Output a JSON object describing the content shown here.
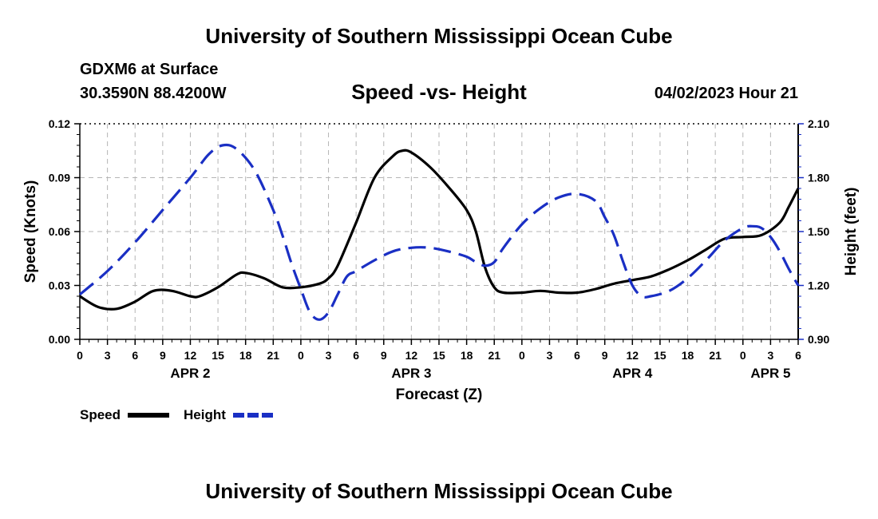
{
  "header": {
    "title": "University of Southern Mississippi Ocean Cube",
    "station": "GDXM6 at Surface",
    "coordinates": "30.3590N  88.4200W",
    "subtitle": "Speed -vs- Height",
    "datetime": "04/02/2023 Hour 21"
  },
  "footer": {
    "title": "University of Southern Mississippi Ocean Cube"
  },
  "chart_data": {
    "type": "line",
    "xlabel": "Forecast (Z)",
    "ylabel_left": "Speed (Knots)",
    "ylabel_right": "Height (feet)",
    "x_hours": [
      0,
      3,
      6,
      9,
      12,
      15,
      18,
      21,
      24,
      27,
      30,
      33,
      36,
      39,
      42,
      45,
      48,
      51,
      54,
      57,
      60,
      63,
      66,
      69,
      72,
      75,
      78
    ],
    "x_tick_labels": [
      "0",
      "3",
      "6",
      "9",
      "12",
      "15",
      "18",
      "21",
      "0",
      "3",
      "6",
      "9",
      "12",
      "15",
      "18",
      "21",
      "0",
      "3",
      "6",
      "9",
      "12",
      "15",
      "18",
      "21",
      "0",
      "3",
      "6"
    ],
    "day_labels": [
      {
        "label": "APR 2",
        "hour": 12
      },
      {
        "label": "APR 3",
        "hour": 36
      },
      {
        "label": "APR 4",
        "hour": 60
      },
      {
        "label": "APR 5",
        "hour": 75
      }
    ],
    "left_axis": {
      "min": 0.0,
      "max": 0.12,
      "ticks": [
        "0.00",
        "0.03",
        "0.06",
        "0.09",
        "0.12"
      ]
    },
    "right_axis": {
      "min": 0.9,
      "max": 2.1,
      "ticks": [
        "0.90",
        "1.20",
        "1.50",
        "1.80",
        "2.10"
      ]
    },
    "series": [
      {
        "name": "Speed",
        "axis": "left",
        "color": "#000000",
        "dash": "solid",
        "points": [
          [
            0,
            0.024
          ],
          [
            2,
            0.018
          ],
          [
            4,
            0.017
          ],
          [
            6,
            0.021
          ],
          [
            8,
            0.027
          ],
          [
            10,
            0.027
          ],
          [
            12,
            0.024
          ],
          [
            13,
            0.024
          ],
          [
            15,
            0.029
          ],
          [
            17,
            0.036
          ],
          [
            18,
            0.037
          ],
          [
            20,
            0.034
          ],
          [
            22,
            0.029
          ],
          [
            24,
            0.029
          ],
          [
            26,
            0.031
          ],
          [
            27,
            0.034
          ],
          [
            28,
            0.041
          ],
          [
            30,
            0.065
          ],
          [
            32,
            0.09
          ],
          [
            34,
            0.102
          ],
          [
            35,
            0.105
          ],
          [
            36,
            0.104
          ],
          [
            38,
            0.096
          ],
          [
            40,
            0.085
          ],
          [
            42,
            0.072
          ],
          [
            43,
            0.06
          ],
          [
            44,
            0.04
          ],
          [
            45,
            0.029
          ],
          [
            46,
            0.026
          ],
          [
            48,
            0.026
          ],
          [
            50,
            0.027
          ],
          [
            52,
            0.026
          ],
          [
            54,
            0.026
          ],
          [
            56,
            0.028
          ],
          [
            58,
            0.031
          ],
          [
            60,
            0.033
          ],
          [
            62,
            0.035
          ],
          [
            64,
            0.039
          ],
          [
            66,
            0.044
          ],
          [
            68,
            0.05
          ],
          [
            70,
            0.056
          ],
          [
            72,
            0.057
          ],
          [
            74,
            0.058
          ],
          [
            76,
            0.065
          ],
          [
            77,
            0.074
          ],
          [
            78,
            0.084
          ]
        ]
      },
      {
        "name": "Height",
        "axis": "right",
        "color": "#1a2fc4",
        "dash": "dashed",
        "points": [
          [
            0,
            1.15
          ],
          [
            3,
            1.28
          ],
          [
            6,
            1.44
          ],
          [
            9,
            1.62
          ],
          [
            12,
            1.8
          ],
          [
            14,
            1.93
          ],
          [
            15.5,
            1.98
          ],
          [
            17,
            1.96
          ],
          [
            19,
            1.84
          ],
          [
            21,
            1.62
          ],
          [
            22,
            1.48
          ],
          [
            23,
            1.32
          ],
          [
            24,
            1.18
          ],
          [
            25,
            1.05
          ],
          [
            26,
            1.01
          ],
          [
            27,
            1.05
          ],
          [
            28,
            1.15
          ],
          [
            29,
            1.25
          ],
          [
            30,
            1.28
          ],
          [
            32,
            1.34
          ],
          [
            34,
            1.39
          ],
          [
            36,
            1.41
          ],
          [
            38,
            1.41
          ],
          [
            40,
            1.39
          ],
          [
            42,
            1.36
          ],
          [
            43,
            1.33
          ],
          [
            44,
            1.31
          ],
          [
            45,
            1.33
          ],
          [
            46,
            1.41
          ],
          [
            48,
            1.54
          ],
          [
            50,
            1.63
          ],
          [
            52,
            1.69
          ],
          [
            54,
            1.71
          ],
          [
            56,
            1.67
          ],
          [
            57,
            1.58
          ],
          [
            58,
            1.48
          ],
          [
            59,
            1.33
          ],
          [
            60,
            1.2
          ],
          [
            61,
            1.14
          ],
          [
            62,
            1.14
          ],
          [
            64,
            1.17
          ],
          [
            66,
            1.24
          ],
          [
            68,
            1.34
          ],
          [
            70,
            1.45
          ],
          [
            72,
            1.52
          ],
          [
            73,
            1.53
          ],
          [
            74,
            1.52
          ],
          [
            75,
            1.47
          ],
          [
            76,
            1.39
          ],
          [
            77,
            1.29
          ],
          [
            78,
            1.2
          ]
        ]
      }
    ]
  },
  "legend": {
    "speed_label": "Speed",
    "height_label": "Height"
  }
}
